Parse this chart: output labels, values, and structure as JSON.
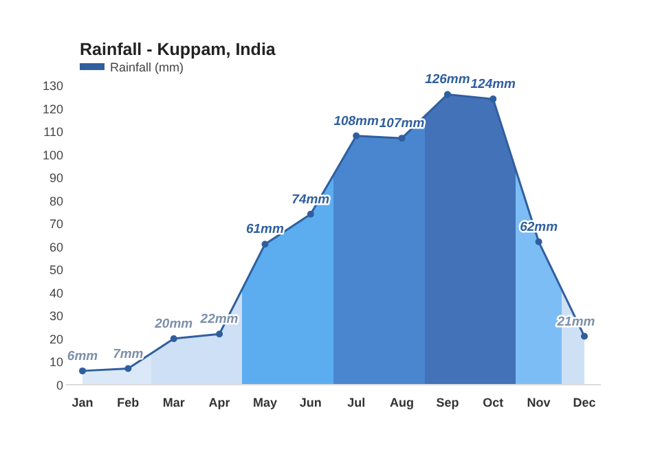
{
  "chart_data": {
    "type": "area",
    "title": "Rainfall - Kuppam, India",
    "categories": [
      "Jan",
      "Feb",
      "Mar",
      "Apr",
      "May",
      "Jun",
      "Jul",
      "Aug",
      "Sep",
      "Oct",
      "Nov",
      "Dec"
    ],
    "series": [
      {
        "name": "Rainfall (mm)",
        "color": "#2f5f9e",
        "values": [
          6,
          7,
          20,
          22,
          61,
          74,
          108,
          107,
          126,
          124,
          62,
          21
        ],
        "value_labels": [
          "6mm",
          "7mm",
          "20mm",
          "22mm",
          "61mm",
          "74mm",
          "108mm",
          "107mm",
          "126mm",
          "124mm",
          "62mm",
          "21mm"
        ],
        "colors": [
          "#dbe8f7",
          "#dbe8f7",
          "#cde0f6",
          "#cde0f6",
          "#5cacf0",
          "#5cacf0",
          "#4a86d0",
          "#4a86d0",
          "#4372b8",
          "#4372b8",
          "#7cbdf5",
          "#cde0f6"
        ]
      }
    ],
    "ylim": [
      0,
      130
    ],
    "yticks": [
      0,
      10,
      20,
      30,
      40,
      50,
      60,
      70,
      80,
      90,
      100,
      110,
      120,
      130
    ],
    "legend": "top left",
    "marker": "circle",
    "line_style": "solid",
    "grid": false
  }
}
